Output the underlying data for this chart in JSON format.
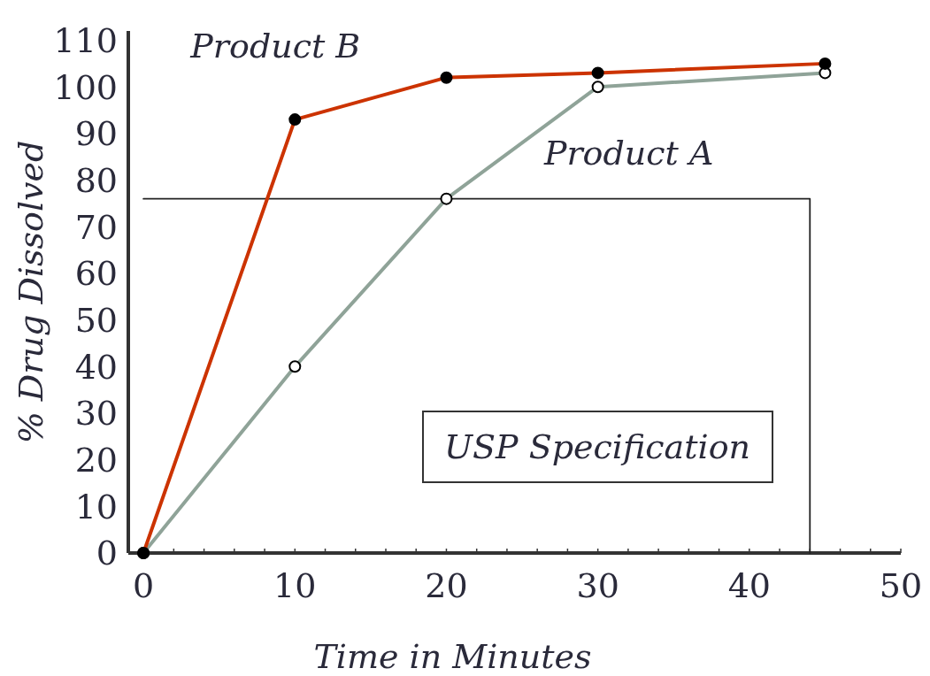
{
  "chart_data": {
    "type": "line",
    "xlabel": "Time in Minutes",
    "ylabel": "% Drug Dissolved",
    "xlim": [
      -1,
      50
    ],
    "ylim": [
      0,
      112
    ],
    "xticks": [
      0,
      10,
      20,
      30,
      40,
      50
    ],
    "yticks": [
      0,
      10,
      20,
      30,
      40,
      50,
      60,
      70,
      80,
      90,
      100,
      110
    ],
    "grid": false,
    "marker": "circle",
    "line_style": "solid",
    "series": [
      {
        "name": "Product B",
        "color": "#cc3300",
        "x": [
          0,
          10,
          20,
          30,
          45
        ],
        "values": [
          0,
          93,
          102,
          103,
          105
        ]
      },
      {
        "name": "Product A",
        "color": "#8fa398",
        "x": [
          0,
          10,
          20,
          30,
          45
        ],
        "values": [
          0,
          40,
          76,
          100,
          103
        ]
      },
      {
        "color": "#222222",
        "x": [
          0,
          44,
          44
        ],
        "values": [
          76,
          76,
          0
        ],
        "marker": "none"
      }
    ],
    "annotations": [
      "USP Specification"
    ]
  }
}
